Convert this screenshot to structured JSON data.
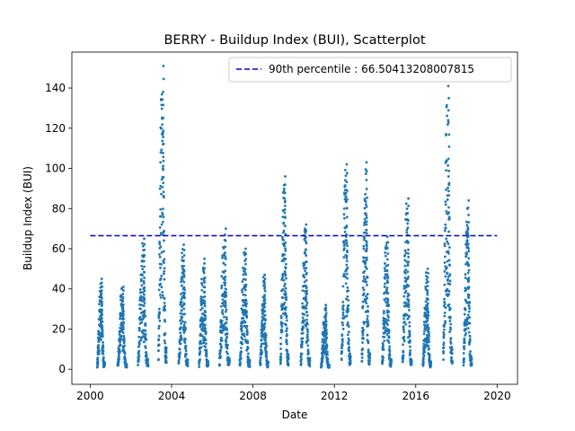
{
  "chart_data": {
    "type": "scatter",
    "title": "BERRY - Buildup Index (BUI), Scatterplot",
    "xlabel": "Date",
    "ylabel": "Buildup Index (BUI)",
    "xlim": [
      1999.1,
      2021.0
    ],
    "ylim": [
      -7.5,
      157.9
    ],
    "x_ticks": [
      "2000",
      "2004",
      "2008",
      "2012",
      "2016",
      "2020"
    ],
    "y_ticks": [
      0,
      20,
      40,
      60,
      80,
      100,
      120,
      140
    ],
    "grid": false,
    "legend_position": "top-right",
    "point_color": "#1f77b4",
    "reference_line": {
      "name": "90th percentile : 66.50413208007815",
      "value": 66.50413208007815,
      "x_range": [
        2000.0,
        2020.0
      ],
      "color": "#0000cd",
      "style": "dashed"
    },
    "seasons": [
      {
        "start": 2000.35,
        "end": 2000.72,
        "peak": 45
      },
      {
        "start": 2001.35,
        "end": 2001.8,
        "peak": 41
      },
      {
        "start": 2002.35,
        "end": 2002.85,
        "peak": 65
      },
      {
        "start": 2003.35,
        "end": 2003.75,
        "peak": 151
      },
      {
        "start": 2004.35,
        "end": 2004.8,
        "peak": 62
      },
      {
        "start": 2005.35,
        "end": 2005.8,
        "peak": 55
      },
      {
        "start": 2006.35,
        "end": 2006.85,
        "peak": 70
      },
      {
        "start": 2007.35,
        "end": 2007.85,
        "peak": 60
      },
      {
        "start": 2008.35,
        "end": 2008.75,
        "peak": 47
      },
      {
        "start": 2009.35,
        "end": 2009.75,
        "peak": 96
      },
      {
        "start": 2010.35,
        "end": 2010.8,
        "peak": 72
      },
      {
        "start": 2011.35,
        "end": 2011.75,
        "peak": 32
      },
      {
        "start": 2012.35,
        "end": 2012.8,
        "peak": 102
      },
      {
        "start": 2013.35,
        "end": 2013.75,
        "peak": 103
      },
      {
        "start": 2014.35,
        "end": 2014.8,
        "peak": 66
      },
      {
        "start": 2015.35,
        "end": 2015.8,
        "peak": 85
      },
      {
        "start": 2016.35,
        "end": 2016.75,
        "peak": 50
      },
      {
        "start": 2017.35,
        "end": 2017.8,
        "peak": 141
      },
      {
        "start": 2018.35,
        "end": 2018.75,
        "peak": 84
      }
    ]
  }
}
